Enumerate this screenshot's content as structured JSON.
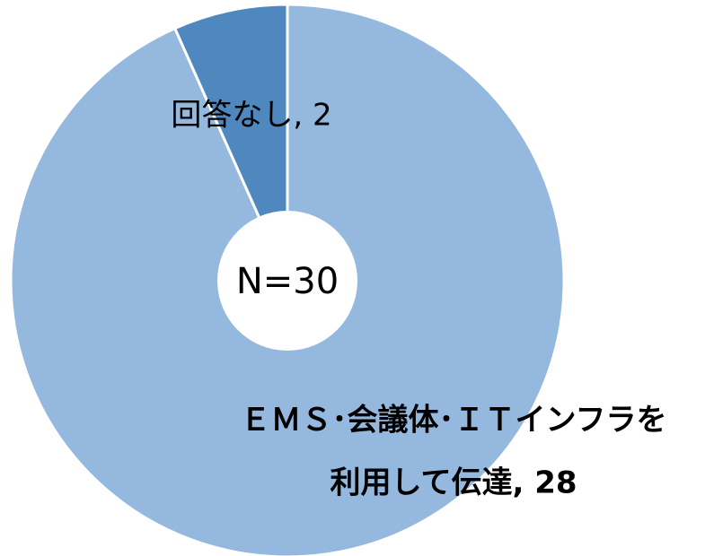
{
  "chart_data": {
    "type": "donut",
    "values": [
      28,
      2
    ],
    "colors": [
      "#95b8df",
      "#4f88be"
    ],
    "labels": [
      [
        "ＥＭＳ･会議体･ＩＴインフラを",
        "利用して伝達, 28"
      ],
      [
        "回答なし, 2"
      ]
    ],
    "center_label": "N=30"
  }
}
